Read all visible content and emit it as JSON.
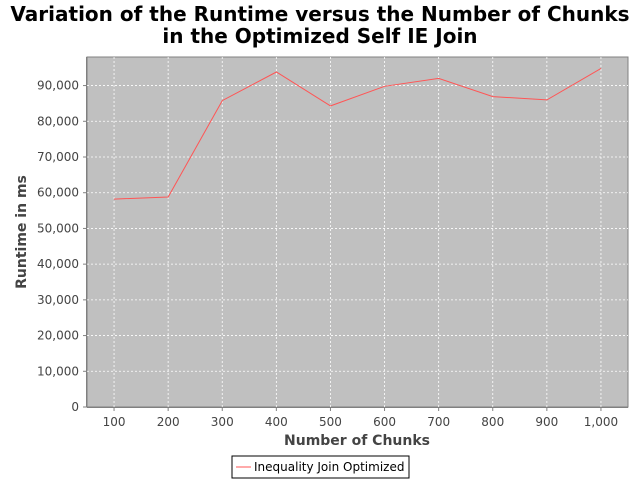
{
  "chart_data": {
    "type": "line",
    "title": "Variation of the Runtime versus the Number of Chunks in the Optimized Self IE Join",
    "title_lines": [
      "Variation of the Runtime versus the Number of Chunks",
      "in the Optimized Self IE Join"
    ],
    "xlabel": "Number of Chunks",
    "ylabel": "Runtime in ms",
    "categories": [
      "100",
      "200",
      "300",
      "400",
      "500",
      "600",
      "700",
      "800",
      "900",
      "1,000"
    ],
    "y_ticks": [
      "0",
      "10,000",
      "20,000",
      "30,000",
      "40,000",
      "50,000",
      "60,000",
      "70,000",
      "80,000",
      "90,000"
    ],
    "ylim": [
      0,
      98000
    ],
    "grid": true,
    "legend_position": "bottom-center",
    "plot_background": "#c0c0c0",
    "series": [
      {
        "name": "Inequality Join Optimized",
        "color": "#ff5555",
        "values": [
          58200,
          58800,
          85800,
          93800,
          84300,
          89800,
          92000,
          86900,
          86000,
          94800
        ]
      }
    ]
  }
}
